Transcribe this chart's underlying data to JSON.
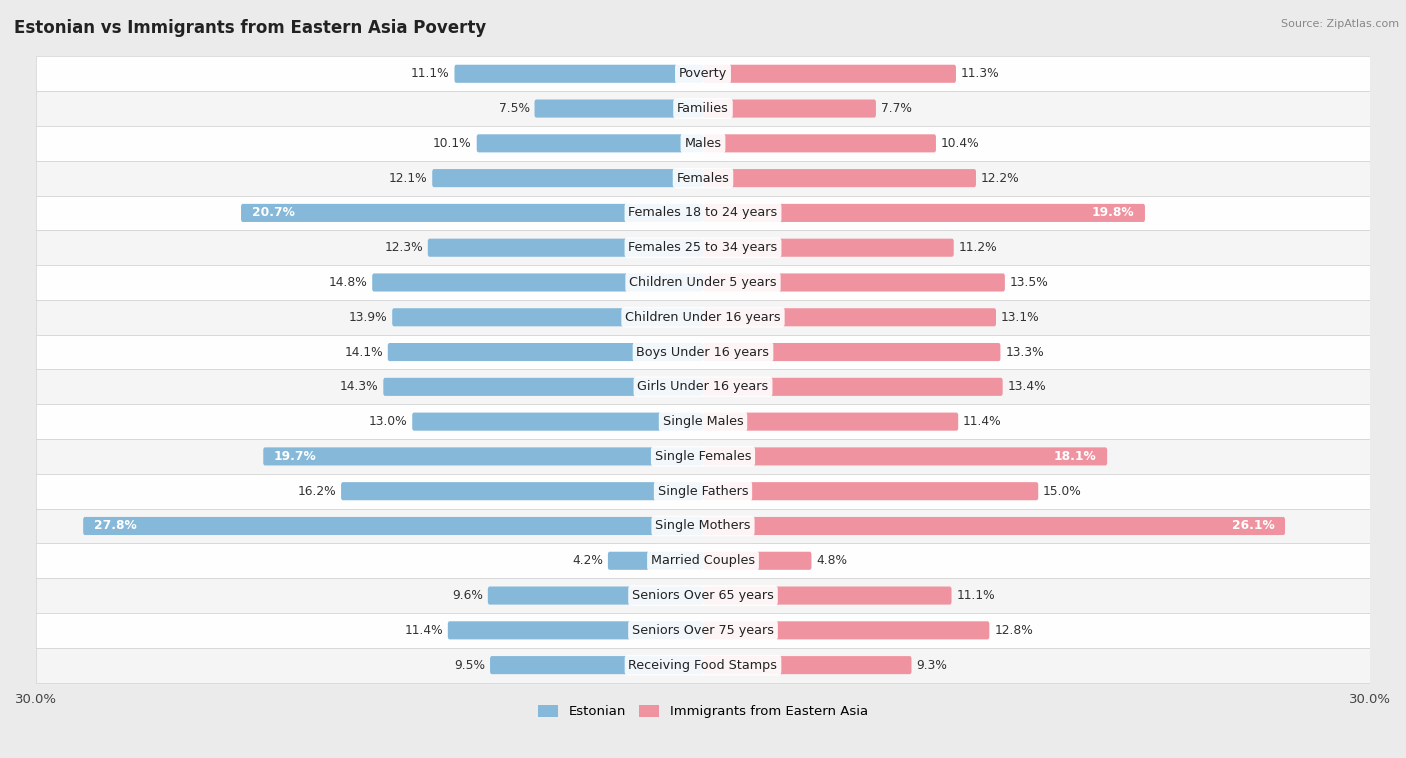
{
  "title": "Estonian vs Immigrants from Eastern Asia Poverty",
  "source": "Source: ZipAtlas.com",
  "categories": [
    "Poverty",
    "Families",
    "Males",
    "Females",
    "Females 18 to 24 years",
    "Females 25 to 34 years",
    "Children Under 5 years",
    "Children Under 16 years",
    "Boys Under 16 years",
    "Girls Under 16 years",
    "Single Males",
    "Single Females",
    "Single Fathers",
    "Single Mothers",
    "Married Couples",
    "Seniors Over 65 years",
    "Seniors Over 75 years",
    "Receiving Food Stamps"
  ],
  "estonian": [
    11.1,
    7.5,
    10.1,
    12.1,
    20.7,
    12.3,
    14.8,
    13.9,
    14.1,
    14.3,
    13.0,
    19.7,
    16.2,
    27.8,
    4.2,
    9.6,
    11.4,
    9.5
  ],
  "immigrants": [
    11.3,
    7.7,
    10.4,
    12.2,
    19.8,
    11.2,
    13.5,
    13.1,
    13.3,
    13.4,
    11.4,
    18.1,
    15.0,
    26.1,
    4.8,
    11.1,
    12.8,
    9.3
  ],
  "estonian_color": "#85B8D9",
  "immigrant_color": "#F093A0",
  "bar_height": 0.52,
  "xlim": 30.0,
  "bg_color": "#EBEBEB",
  "row_bg_even": "#F5F5F5",
  "row_bg_odd": "#FEFEFE",
  "label_fontsize": 9.2,
  "value_fontsize": 8.8,
  "title_fontsize": 12,
  "inside_threshold": 18.0
}
